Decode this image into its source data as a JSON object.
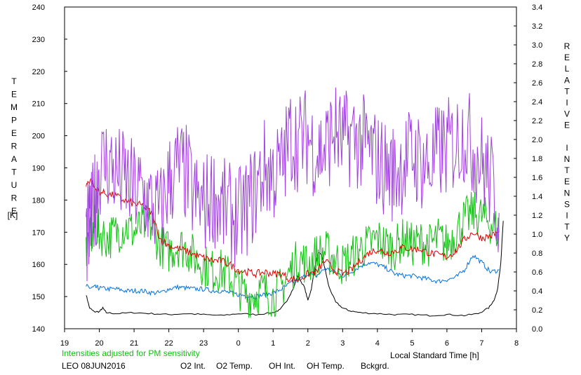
{
  "chart_data": {
    "type": "line",
    "left_axis": {
      "label_letters": [
        "T",
        "E",
        "M",
        "P",
        "E",
        "R",
        "A",
        "T",
        "U",
        "R",
        "E"
      ],
      "unit": "[K]",
      "ylim": [
        140,
        240
      ],
      "ticks": [
        "140",
        "150",
        "160",
        "170",
        "180",
        "190",
        "200",
        "210",
        "220",
        "230",
        "240"
      ]
    },
    "right_axis": {
      "label_letters": [
        "R",
        "E",
        "L",
        "A",
        "T",
        "I",
        "V",
        "E",
        " ",
        "I",
        "N",
        "T",
        "E",
        "N",
        "S",
        "I",
        "T",
        "Y"
      ],
      "ylim": [
        0.0,
        3.4
      ],
      "ticks": [
        "0.0",
        "0.2",
        "0.4",
        "0.6",
        "0.8",
        "1.0",
        "1.2",
        "1.4",
        "1.6",
        "1.8",
        "2.0",
        "2.2",
        "2.4",
        "2.6",
        "2.8",
        "3.0",
        "3.2",
        "3.4"
      ]
    },
    "x_axis": {
      "label": "Local Standard Time [h]",
      "xlim": [
        19,
        32
      ],
      "ticks": [
        "19",
        "20",
        "21",
        "22",
        "23",
        "0",
        "1",
        "2",
        "3",
        "4",
        "5",
        "6",
        "7",
        "8"
      ]
    },
    "annotation": "Intensities adjusted for PM sensitivity",
    "station": "LEO 08JUN2016",
    "legend": [
      {
        "name": "O2 Int.",
        "color": "#0070e0"
      },
      {
        "name": "O2 Temp.",
        "color": "#a040e0"
      },
      {
        "name": "OH Int.",
        "color": "#e00000"
      },
      {
        "name": "OH Temp.",
        "color": "#10c010"
      },
      {
        "name": "Bckgrd.",
        "color": "#000000"
      }
    ],
    "series": [
      {
        "name": "O2 Temp.",
        "axis": "left",
        "color": "#a040e0",
        "x": [
          19.62,
          19.75,
          19.87,
          20.0,
          20.25,
          20.5,
          20.75,
          21.0,
          21.25,
          21.5,
          21.75,
          22.0,
          22.25,
          22.5,
          22.75,
          23.0,
          23.25,
          23.5,
          23.75,
          24.0,
          24.25,
          24.5,
          24.75,
          25.0,
          25.25,
          25.5,
          25.75,
          26.0,
          26.25,
          26.5,
          26.75,
          27.0,
          27.25,
          27.5,
          27.75,
          28.0,
          28.25,
          28.5,
          28.75,
          29.0,
          29.25,
          29.5,
          29.75,
          30.0,
          30.25,
          30.5,
          30.75,
          31.0,
          31.25,
          31.5
        ],
        "y": [
          168,
          172,
          180,
          190,
          192,
          188,
          186,
          183,
          182,
          178,
          175,
          186,
          190,
          188,
          180,
          178,
          182,
          178,
          176,
          174,
          178,
          183,
          190,
          188,
          190,
          200,
          198,
          200,
          195,
          196,
          202,
          198,
          200,
          198,
          196,
          192,
          190,
          188,
          192,
          194,
          192,
          190,
          195,
          196,
          198,
          201,
          196,
          192,
          186,
          176
        ]
      },
      {
        "name": "OH Temp.",
        "axis": "left",
        "color": "#10c010",
        "x": [
          19.62,
          19.75,
          19.87,
          20.0,
          20.25,
          20.5,
          20.75,
          21.0,
          21.25,
          21.5,
          21.75,
          22.0,
          22.25,
          22.5,
          22.75,
          23.0,
          23.25,
          23.5,
          23.75,
          24.0,
          24.25,
          24.5,
          24.75,
          25.0,
          25.25,
          25.5,
          25.75,
          26.0,
          26.25,
          26.5,
          26.75,
          27.0,
          27.25,
          27.5,
          27.75,
          28.0,
          28.25,
          28.5,
          28.75,
          29.0,
          29.25,
          29.5,
          29.75,
          30.0,
          30.25,
          30.5,
          30.75,
          31.0,
          31.25,
          31.5
        ],
        "y": [
          165,
          168,
          172,
          170,
          168,
          170,
          172,
          170,
          172,
          172,
          166,
          164,
          166,
          165,
          162,
          160,
          158,
          158,
          156,
          153,
          150,
          151,
          152,
          150,
          153,
          158,
          162,
          160,
          163,
          164,
          162,
          160,
          162,
          165,
          166,
          168,
          166,
          165,
          168,
          166,
          167,
          166,
          168,
          166,
          170,
          174,
          176,
          175,
          173,
          170
        ]
      },
      {
        "name": "OH Int.",
        "axis": "right",
        "color": "#e00000",
        "x": [
          19.62,
          19.75,
          19.87,
          20.0,
          20.25,
          20.5,
          20.75,
          21.0,
          21.25,
          21.5,
          21.75,
          22.0,
          22.25,
          22.5,
          22.75,
          23.0,
          23.25,
          23.5,
          23.75,
          24.0,
          24.25,
          24.5,
          24.75,
          25.0,
          25.25,
          25.5,
          25.75,
          26.0,
          26.25,
          26.5,
          26.75,
          27.0,
          27.25,
          27.5,
          27.75,
          28.0,
          28.25,
          28.5,
          28.75,
          29.0,
          29.25,
          29.5,
          29.75,
          30.0,
          30.25,
          30.5,
          30.75,
          31.0,
          31.25,
          31.5
        ],
        "y": [
          1.52,
          1.58,
          1.48,
          1.45,
          1.42,
          1.4,
          1.35,
          1.32,
          1.3,
          1.22,
          0.95,
          0.88,
          0.85,
          0.82,
          0.78,
          0.75,
          0.72,
          0.72,
          0.68,
          0.62,
          0.6,
          0.58,
          0.6,
          0.58,
          0.58,
          0.52,
          0.52,
          0.58,
          0.6,
          0.72,
          0.62,
          0.58,
          0.62,
          0.72,
          0.8,
          0.84,
          0.8,
          0.82,
          0.86,
          0.84,
          0.84,
          0.8,
          0.78,
          0.76,
          0.82,
          0.94,
          1.02,
          0.96,
          0.98,
          1.02
        ]
      },
      {
        "name": "O2 Int.",
        "axis": "right",
        "color": "#0070e0",
        "x": [
          19.62,
          19.75,
          19.87,
          20.0,
          20.25,
          20.5,
          20.75,
          21.0,
          21.25,
          21.5,
          21.75,
          22.0,
          22.25,
          22.5,
          22.75,
          23.0,
          23.25,
          23.5,
          23.75,
          24.0,
          24.25,
          24.5,
          24.75,
          25.0,
          25.25,
          25.5,
          25.75,
          26.0,
          26.25,
          26.5,
          26.75,
          27.0,
          27.25,
          27.5,
          27.75,
          28.0,
          28.25,
          28.5,
          28.75,
          29.0,
          29.25,
          29.5,
          29.75,
          30.0,
          30.25,
          30.5,
          30.75,
          31.0,
          31.25,
          31.5
        ],
        "y": [
          0.45,
          0.43,
          0.44,
          0.43,
          0.42,
          0.42,
          0.4,
          0.4,
          0.4,
          0.38,
          0.38,
          0.42,
          0.44,
          0.43,
          0.42,
          0.42,
          0.4,
          0.4,
          0.38,
          0.36,
          0.35,
          0.34,
          0.36,
          0.38,
          0.42,
          0.48,
          0.52,
          0.58,
          0.56,
          0.64,
          0.6,
          0.56,
          0.6,
          0.66,
          0.7,
          0.68,
          0.64,
          0.58,
          0.56,
          0.56,
          0.54,
          0.52,
          0.5,
          0.52,
          0.54,
          0.62,
          0.78,
          0.7,
          0.6,
          0.62
        ]
      },
      {
        "name": "Bckgrd.",
        "axis": "right",
        "color": "#000000",
        "x": [
          19.62,
          19.72,
          19.85,
          20.0,
          20.1,
          20.2,
          20.5,
          21.0,
          21.5,
          22.0,
          22.5,
          23.0,
          23.5,
          24.0,
          24.5,
          25.0,
          25.2,
          25.4,
          25.6,
          25.7,
          25.9,
          26.0,
          26.1,
          26.2,
          26.3,
          26.4,
          26.5,
          26.6,
          26.8,
          27.0,
          27.2,
          27.5,
          28.0,
          28.5,
          29.0,
          29.5,
          30.0,
          30.5,
          30.9,
          31.2,
          31.35,
          31.45,
          31.55,
          31.62
        ],
        "y": [
          0.36,
          0.22,
          0.18,
          0.18,
          0.22,
          0.17,
          0.16,
          0.17,
          0.16,
          0.15,
          0.16,
          0.15,
          0.14,
          0.16,
          0.15,
          0.17,
          0.2,
          0.3,
          0.44,
          0.56,
          0.44,
          0.3,
          0.42,
          0.65,
          0.8,
          0.78,
          0.62,
          0.45,
          0.28,
          0.22,
          0.19,
          0.17,
          0.16,
          0.15,
          0.15,
          0.14,
          0.15,
          0.14,
          0.16,
          0.22,
          0.3,
          0.4,
          0.7,
          1.14
        ]
      }
    ]
  }
}
